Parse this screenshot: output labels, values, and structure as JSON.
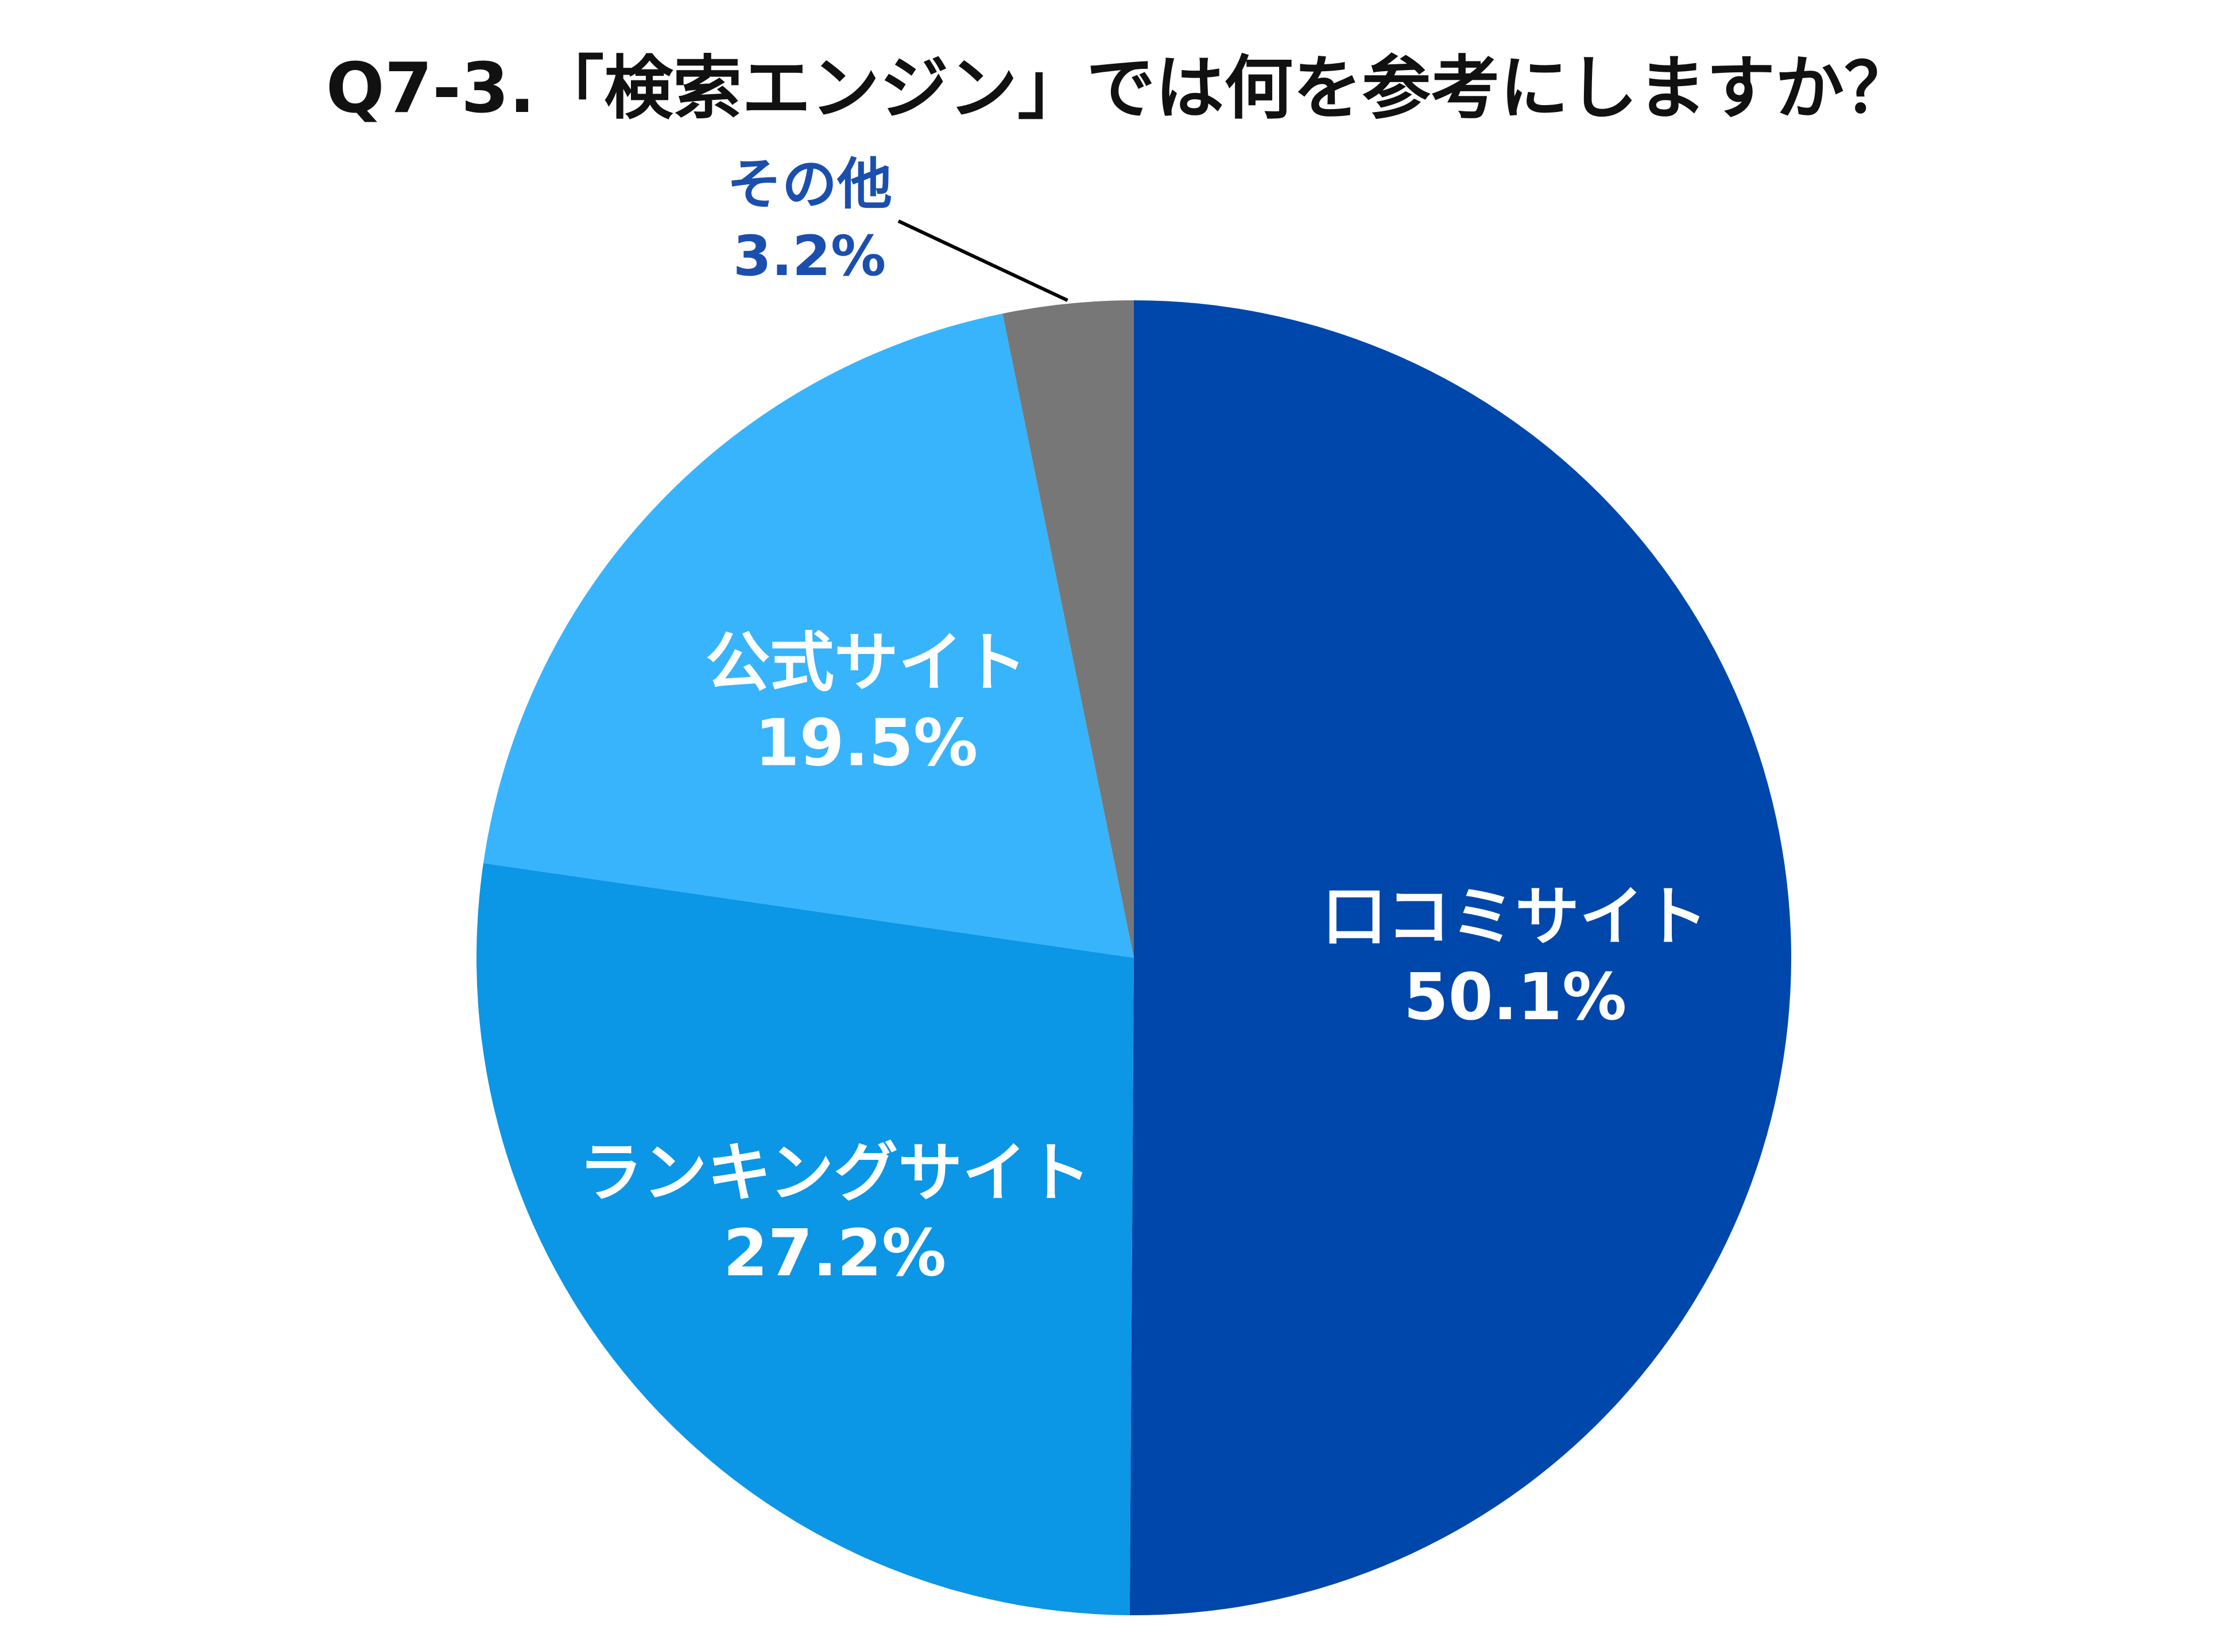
{
  "chart_data": {
    "type": "pie",
    "title": "Q7-3.「検索エンジン」では何を参考にしますか？",
    "slices": [
      {
        "label": "口コミサイト",
        "value": 50.1,
        "value_label": "50.1%",
        "color": "#0047AB",
        "label_position": "inside"
      },
      {
        "label": "ランキングサイト",
        "value": 27.2,
        "value_label": "27.2%",
        "color": "#0B96E6",
        "label_position": "inside"
      },
      {
        "label": "公式サイト",
        "value": 19.5,
        "value_label": "19.5%",
        "color": "#38B4FC",
        "label_position": "inside"
      },
      {
        "label": "その他",
        "value": 3.2,
        "value_label": "3.2%",
        "color": "#777777",
        "label_position": "outside",
        "label_color": "#1A4FAE"
      }
    ],
    "start_angle": "12 o'clock",
    "direction": "clockwise",
    "legend": "none"
  }
}
